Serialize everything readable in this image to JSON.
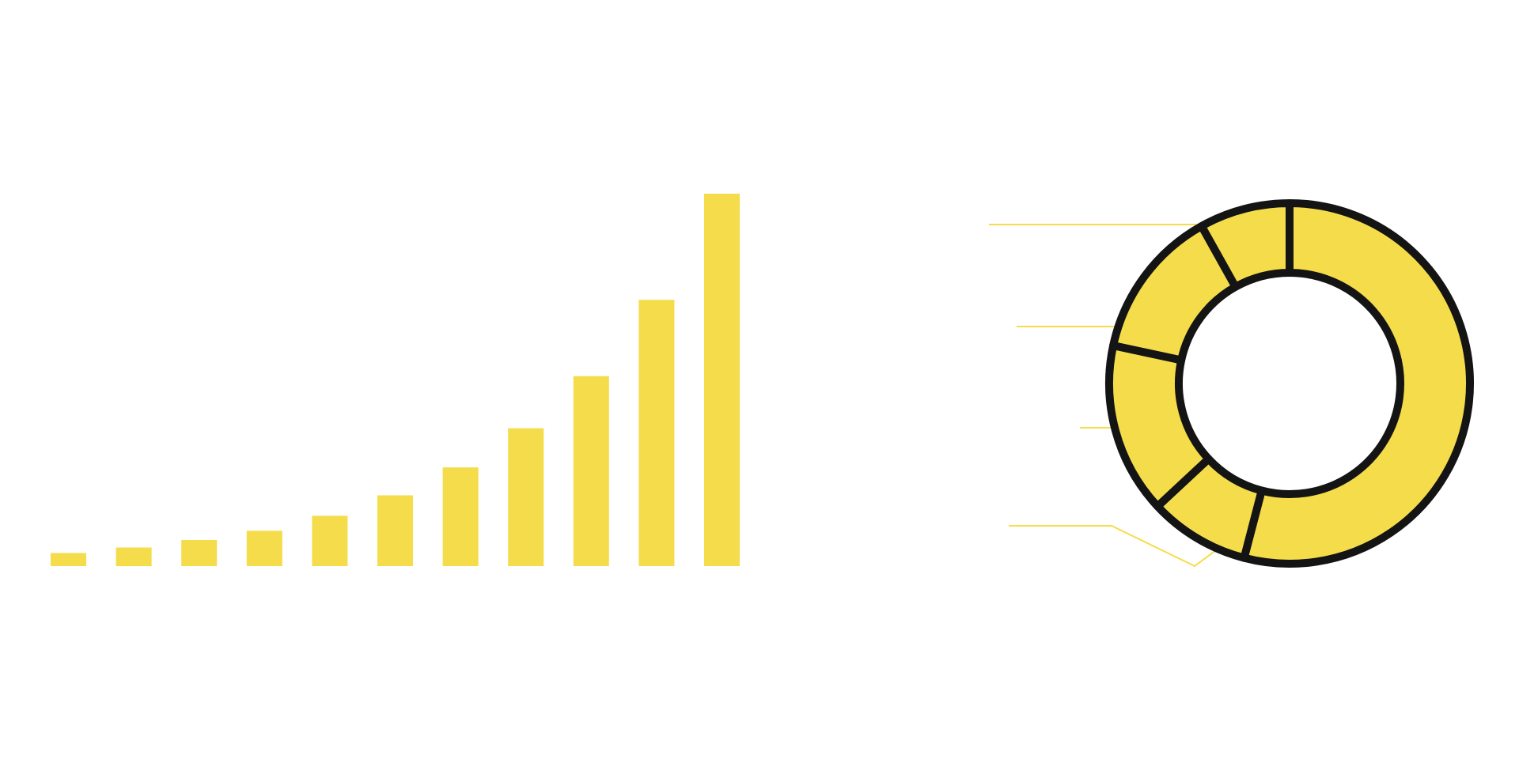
{
  "colors": {
    "bar_fill": "#F5DC4A",
    "slice_fill": "#F5DC4A",
    "slice_stroke": "#141414",
    "leader_line": "#F5DC4A",
    "background": "#FFFFFF"
  },
  "chart_data": [
    {
      "type": "bar",
      "title": "",
      "xlabel": "",
      "ylabel": "",
      "grid": false,
      "legend": "none",
      "categories": [
        "",
        "",
        "",
        "",
        "",
        "",
        "",
        "",
        "",
        "",
        ""
      ],
      "values": [
        3.5,
        5,
        7,
        9.5,
        13.5,
        19,
        26.5,
        37,
        51,
        71.5,
        100
      ],
      "ylim": [
        0,
        100
      ]
    },
    {
      "type": "pie",
      "style": "donut",
      "title": "",
      "legend": "none",
      "values": [
        60,
        10,
        17,
        15,
        9
      ]
    }
  ]
}
